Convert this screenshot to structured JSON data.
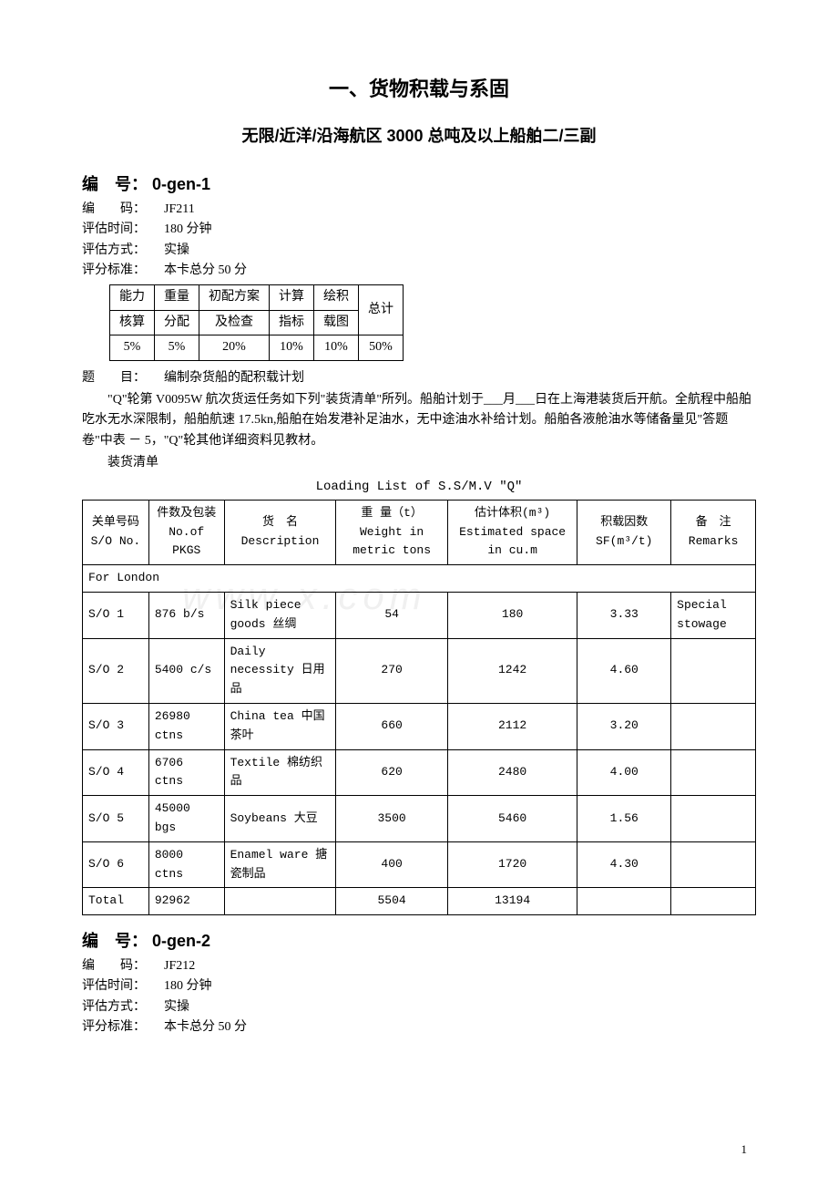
{
  "watermark": "www       x.com",
  "page_number": "1",
  "header": {
    "title_main": "一、货物积载与系固",
    "title_sub": "无限/近洋/沿海航区 3000 总吨及以上船舶二/三副"
  },
  "section1": {
    "header_label": "编　号：",
    "header_value": "0-gen-1",
    "code_label": "编　　码：",
    "code_value": "JF211",
    "time_label": "评估时间：",
    "time_value": "180 分钟",
    "method_label": "评估方式：",
    "method_value": "实操",
    "std_label": "评分标准：",
    "std_value": "本卡总分 50 分",
    "score_table": {
      "headers": [
        [
          "能力",
          "核算"
        ],
        [
          "重量",
          "分配"
        ],
        [
          "初配方案",
          "及检查"
        ],
        [
          "计算",
          "指标"
        ],
        [
          "绘积",
          "载图"
        ],
        [
          "总计",
          ""
        ]
      ],
      "values": [
        "5%",
        "5%",
        "20%",
        "10%",
        "10%",
        "50%"
      ]
    },
    "topic_label": "题　　目：",
    "topic_value": "编制杂货船的配积载计划",
    "para1": "\"Q\"轮第 V0095W 航次货运任务如下列\"装货清单\"所列。船舶计划于___月___日在上海港装货后开航。全航程中船舶吃水无水深限制，船舶航速 17.5kn,船舶在始发港补足油水，无中途油水补给计划。船舶各液舱油水等储备量见\"答题卷\"中表 － 5，\"Q\"轮其他详细资料见教材。",
    "para2": "装货清单",
    "loading_caption": "Loading List of S.S/M.V \"Q\"",
    "loading_table": {
      "headers": [
        {
          "zh": "关单号码",
          "en": "S/O No."
        },
        {
          "zh": "件数及包装",
          "en": "No.of PKGS"
        },
        {
          "zh": "货　名",
          "en": "Description"
        },
        {
          "zh": "重 量（t）",
          "en": "Weight in metric tons"
        },
        {
          "zh": "估计体积(m³)",
          "en": "Estimated space in cu.m"
        },
        {
          "zh": "积载因数",
          "en": "SF(m³/t)"
        },
        {
          "zh": "备　注",
          "en": "Remarks"
        }
      ],
      "group": "For London",
      "rows": [
        {
          "so": "S/O 1",
          "pkgs": "876 b/s",
          "desc": "Silk piece goods 丝绸",
          "wt": "54",
          "vol": "180",
          "sf": "3.33",
          "rem": "Special stowage"
        },
        {
          "so": "S/O 2",
          "pkgs": "5400 c/s",
          "desc": "Daily necessity 日用品",
          "wt": "270",
          "vol": "1242",
          "sf": "4.60",
          "rem": ""
        },
        {
          "so": "S/O 3",
          "pkgs": "26980 ctns",
          "desc": "China tea 中国茶叶",
          "wt": "660",
          "vol": "2112",
          "sf": "3.20",
          "rem": ""
        },
        {
          "so": "S/O 4",
          "pkgs": "6706 ctns",
          "desc": "Textile 棉纺织品",
          "wt": "620",
          "vol": "2480",
          "sf": "4.00",
          "rem": ""
        },
        {
          "so": "S/O 5",
          "pkgs": "45000 bgs",
          "desc": "Soybeans 大豆",
          "wt": "3500",
          "vol": "5460",
          "sf": "1.56",
          "rem": ""
        },
        {
          "so": "S/O 6",
          "pkgs": "8000 ctns",
          "desc": "Enamel ware 搪瓷制品",
          "wt": "400",
          "vol": "1720",
          "sf": "4.30",
          "rem": ""
        }
      ],
      "total": {
        "so": "Total",
        "pkgs": "92962",
        "desc": "",
        "wt": "5504",
        "vol": "13194",
        "sf": "",
        "rem": ""
      }
    }
  },
  "section2": {
    "header_label": "编　号：",
    "header_value": "0-gen-2",
    "code_label": "编　　码：",
    "code_value": "JF212",
    "time_label": "评估时间：",
    "time_value": "180 分钟",
    "method_label": "评估方式：",
    "method_value": "实操",
    "std_label": "评分标准：",
    "std_value": "本卡总分 50 分"
  }
}
